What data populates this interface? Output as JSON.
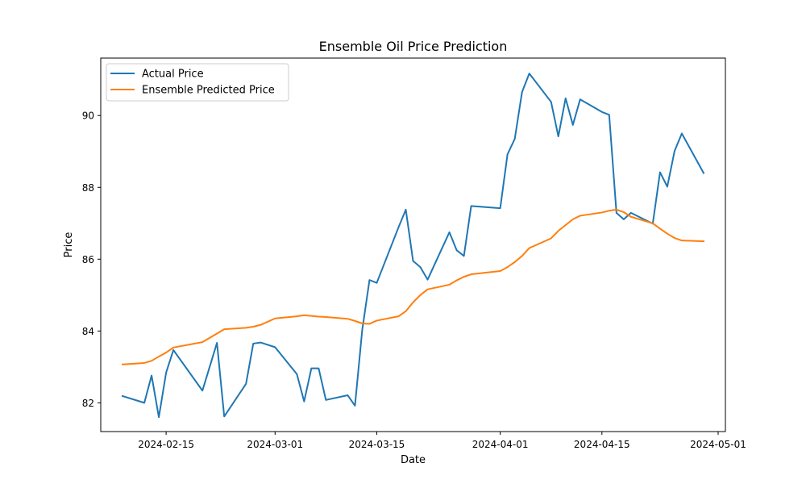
{
  "chart_data": {
    "type": "line",
    "title": "Ensemble Oil Price Prediction",
    "xlabel": "Date",
    "ylabel": "Price",
    "xlim": [
      "2024-02-06",
      "2024-05-02"
    ],
    "ylim": [
      81.2,
      91.6
    ],
    "x_ticks": [
      "2024-02-15",
      "2024-03-01",
      "2024-03-15",
      "2024-04-01",
      "2024-04-15",
      "2024-05-01"
    ],
    "y_ticks": [
      82,
      84,
      86,
      88,
      90
    ],
    "grid": false,
    "legend_position": "top-left",
    "series": [
      {
        "name": "Actual Price",
        "color": "#1f77b4",
        "points": [
          [
            "2024-02-09",
            82.19
          ],
          [
            "2024-02-12",
            82.0
          ],
          [
            "2024-02-13",
            82.76
          ],
          [
            "2024-02-14",
            81.6
          ],
          [
            "2024-02-15",
            82.84
          ],
          [
            "2024-02-16",
            83.47
          ],
          [
            "2024-02-20",
            82.34
          ],
          [
            "2024-02-22",
            83.67
          ],
          [
            "2024-02-23",
            81.62
          ],
          [
            "2024-02-26",
            82.53
          ],
          [
            "2024-02-27",
            83.65
          ],
          [
            "2024-02-28",
            83.68
          ],
          [
            "2024-03-01",
            83.55
          ],
          [
            "2024-03-04",
            82.8
          ],
          [
            "2024-03-05",
            82.04
          ],
          [
            "2024-03-06",
            82.96
          ],
          [
            "2024-03-07",
            82.96
          ],
          [
            "2024-03-08",
            82.08
          ],
          [
            "2024-03-11",
            82.21
          ],
          [
            "2024-03-12",
            81.92
          ],
          [
            "2024-03-13",
            84.03
          ],
          [
            "2024-03-14",
            85.42
          ],
          [
            "2024-03-15",
            85.34
          ],
          [
            "2024-03-18",
            86.89
          ],
          [
            "2024-03-19",
            87.38
          ],
          [
            "2024-03-20",
            85.95
          ],
          [
            "2024-03-21",
            85.78
          ],
          [
            "2024-03-22",
            85.43
          ],
          [
            "2024-03-25",
            86.75
          ],
          [
            "2024-03-26",
            86.25
          ],
          [
            "2024-03-27",
            86.09
          ],
          [
            "2024-03-28",
            87.48
          ],
          [
            "2024-04-01",
            87.42
          ],
          [
            "2024-04-02",
            88.92
          ],
          [
            "2024-04-03",
            89.35
          ],
          [
            "2024-04-04",
            90.65
          ],
          [
            "2024-04-05",
            91.17
          ],
          [
            "2024-04-08",
            90.38
          ],
          [
            "2024-04-09",
            89.42
          ],
          [
            "2024-04-10",
            90.48
          ],
          [
            "2024-04-11",
            89.74
          ],
          [
            "2024-04-12",
            90.45
          ],
          [
            "2024-04-15",
            90.1
          ],
          [
            "2024-04-16",
            90.02
          ],
          [
            "2024-04-17",
            87.29
          ],
          [
            "2024-04-18",
            87.11
          ],
          [
            "2024-04-19",
            87.29
          ],
          [
            "2024-04-22",
            86.99
          ],
          [
            "2024-04-23",
            88.42
          ],
          [
            "2024-04-24",
            88.02
          ],
          [
            "2024-04-25",
            89.01
          ],
          [
            "2024-04-26",
            89.5
          ],
          [
            "2024-04-29",
            88.4
          ]
        ]
      },
      {
        "name": "Ensemble Predicted Price",
        "color": "#ff7f0e",
        "points": [
          [
            "2024-02-09",
            83.07
          ],
          [
            "2024-02-12",
            83.11
          ],
          [
            "2024-02-13",
            83.17
          ],
          [
            "2024-02-14",
            83.29
          ],
          [
            "2024-02-15",
            83.4
          ],
          [
            "2024-02-16",
            83.54
          ],
          [
            "2024-02-20",
            83.69
          ],
          [
            "2024-02-22",
            83.93
          ],
          [
            "2024-02-23",
            84.05
          ],
          [
            "2024-02-26",
            84.09
          ],
          [
            "2024-02-27",
            84.12
          ],
          [
            "2024-02-28",
            84.17
          ],
          [
            "2024-03-01",
            84.35
          ],
          [
            "2024-03-04",
            84.41
          ],
          [
            "2024-03-05",
            84.44
          ],
          [
            "2024-03-06",
            84.42
          ],
          [
            "2024-03-07",
            84.4
          ],
          [
            "2024-03-08",
            84.39
          ],
          [
            "2024-03-11",
            84.34
          ],
          [
            "2024-03-12",
            84.28
          ],
          [
            "2024-03-13",
            84.21
          ],
          [
            "2024-03-14",
            84.2
          ],
          [
            "2024-03-15",
            84.29
          ],
          [
            "2024-03-18",
            84.41
          ],
          [
            "2024-03-19",
            84.55
          ],
          [
            "2024-03-20",
            84.8
          ],
          [
            "2024-03-21",
            85.0
          ],
          [
            "2024-03-22",
            85.16
          ],
          [
            "2024-03-25",
            85.29
          ],
          [
            "2024-03-26",
            85.41
          ],
          [
            "2024-03-27",
            85.51
          ],
          [
            "2024-03-28",
            85.58
          ],
          [
            "2024-04-01",
            85.67
          ],
          [
            "2024-04-02",
            85.78
          ],
          [
            "2024-04-03",
            85.92
          ],
          [
            "2024-04-04",
            86.09
          ],
          [
            "2024-04-05",
            86.31
          ],
          [
            "2024-04-08",
            86.58
          ],
          [
            "2024-04-09",
            86.79
          ],
          [
            "2024-04-10",
            86.95
          ],
          [
            "2024-04-11",
            87.11
          ],
          [
            "2024-04-12",
            87.21
          ],
          [
            "2024-04-15",
            87.3
          ],
          [
            "2024-04-16",
            87.35
          ],
          [
            "2024-04-17",
            87.38
          ],
          [
            "2024-04-18",
            87.31
          ],
          [
            "2024-04-19",
            87.18
          ],
          [
            "2024-04-22",
            87.0
          ],
          [
            "2024-04-23",
            86.85
          ],
          [
            "2024-04-24",
            86.71
          ],
          [
            "2024-04-25",
            86.59
          ],
          [
            "2024-04-26",
            86.52
          ],
          [
            "2024-04-29",
            86.5
          ]
        ]
      }
    ]
  }
}
